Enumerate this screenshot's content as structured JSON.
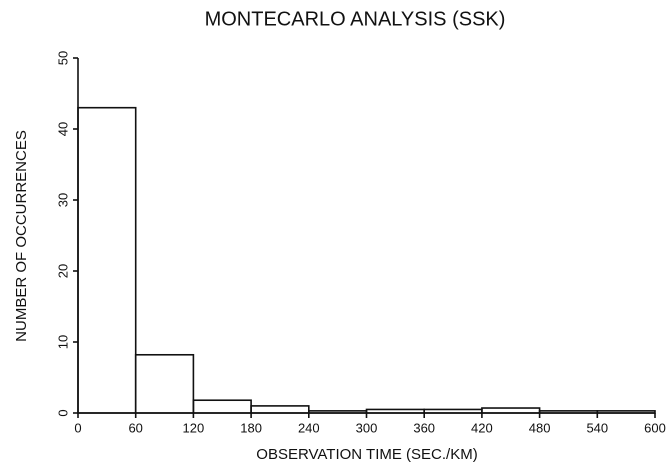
{
  "chart_data": {
    "type": "histogram",
    "title": "MONTECARLO ANALYSIS (SSK)",
    "xlabel": "OBSERVATION TIME (SEC./KM)",
    "ylabel": "NUMBER OF OCCURRENCES",
    "bins": [
      0,
      60,
      120,
      180,
      240,
      300,
      360,
      420,
      480,
      540,
      600
    ],
    "counts": [
      43,
      8.2,
      1.8,
      1,
      0.3,
      0.5,
      0.5,
      0.7,
      0.3,
      0.3
    ],
    "color": "#000000",
    "xlim": [
      0,
      600
    ],
    "xticks": [
      0,
      60,
      120,
      180,
      240,
      300,
      360,
      420,
      480,
      540,
      600
    ],
    "ylim": [
      0,
      50
    ],
    "yticks": [
      0,
      10,
      20,
      30,
      40,
      50
    ]
  }
}
